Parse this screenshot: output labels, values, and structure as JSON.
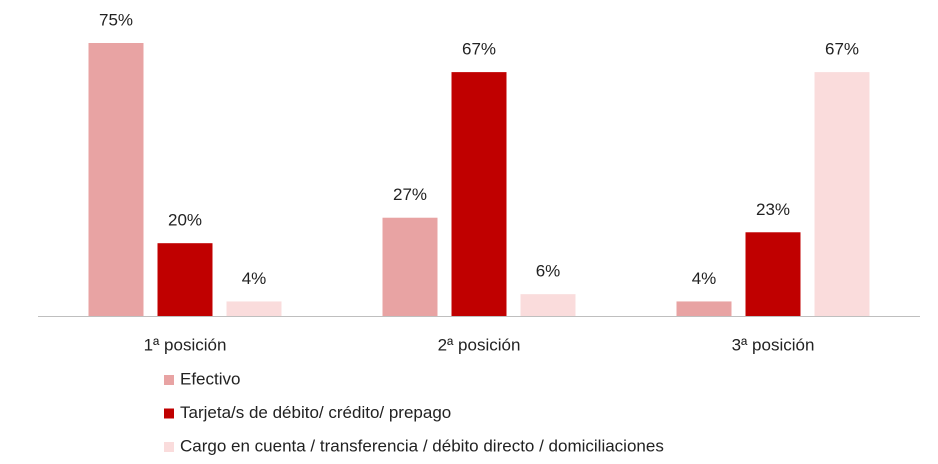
{
  "chart_data": {
    "type": "bar",
    "categories": [
      "1ª posición",
      "2ª posición",
      "3ª posición"
    ],
    "series": [
      {
        "name": "Efectivo",
        "color": "#e8a3a3",
        "values": [
          75,
          27,
          4
        ],
        "value_labels": [
          "75%",
          "27%",
          "4%"
        ]
      },
      {
        "name": "Tarjeta/s de débito/ crédito/ prepago",
        "color": "#c00000",
        "values": [
          20,
          67,
          23
        ],
        "value_labels": [
          "20%",
          "67%",
          "23%"
        ]
      },
      {
        "name": "Cargo en cuenta / transferencia / débito directo / domiciliaciones",
        "color": "#fadcdc",
        "values": [
          4,
          6,
          67
        ],
        "value_labels": [
          "4%",
          "6%",
          "67%"
        ]
      }
    ],
    "legend": "bottom"
  }
}
